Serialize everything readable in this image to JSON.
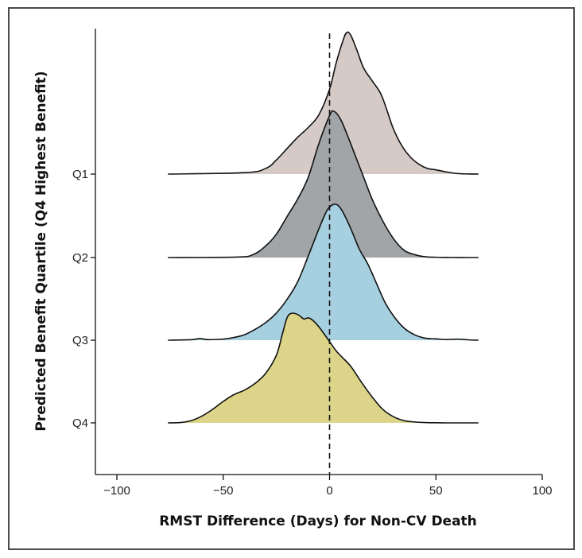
{
  "chart_data": {
    "type": "ridgeline",
    "xlabel": "RMST Difference (Days) for Non-CV Death",
    "ylabel": "Predicted Benefit Quartile (Q4 Highest Benefit)",
    "xlim": [
      -110,
      100
    ],
    "x_ticks": [
      -100,
      -50,
      0,
      50,
      100
    ],
    "x_tick_labels": [
      "−100",
      "−50",
      "0",
      "50",
      "100"
    ],
    "reference_line": {
      "x": 0,
      "style": "dashed"
    },
    "grid": false,
    "series": [
      {
        "name": "Q1",
        "color": "#d5cac6",
        "x": [
          -76,
          -40,
          -30,
          -25,
          -20,
          -15,
          -10,
          -5,
          0,
          3,
          6,
          8,
          10,
          13,
          16,
          20,
          24,
          27,
          30,
          34,
          38,
          42,
          46,
          50,
          55,
          60,
          65,
          70
        ],
        "density": [
          0,
          0.01,
          0.04,
          0.1,
          0.18,
          0.26,
          0.33,
          0.42,
          0.6,
          0.78,
          0.93,
          1.0,
          0.98,
          0.87,
          0.75,
          0.66,
          0.57,
          0.45,
          0.32,
          0.2,
          0.12,
          0.07,
          0.04,
          0.03,
          0.015,
          0.004,
          0.001,
          0
        ]
      },
      {
        "name": "Q2",
        "color": "#a1a5a8",
        "x": [
          -76,
          -44,
          -36,
          -30,
          -25,
          -20,
          -15,
          -10,
          -5,
          0,
          2,
          5,
          8,
          12,
          16,
          20,
          25,
          30,
          35,
          40,
          45,
          50,
          55,
          60,
          65,
          70
        ],
        "density": [
          0,
          0.003,
          0.02,
          0.08,
          0.16,
          0.28,
          0.4,
          0.55,
          0.78,
          0.97,
          1.0,
          0.95,
          0.85,
          0.7,
          0.55,
          0.4,
          0.25,
          0.13,
          0.05,
          0.02,
          0.005,
          0.002,
          0.001,
          0.0005,
          0,
          0
        ]
      },
      {
        "name": "Q3",
        "color": "#a6cfdf",
        "x": [
          -76,
          -65,
          -61,
          -57,
          -50,
          -45,
          -40,
          -35,
          -30,
          -25,
          -20,
          -15,
          -10,
          -5,
          -2,
          0,
          3,
          6,
          10,
          14,
          18,
          22,
          26,
          30,
          35,
          40,
          45,
          50,
          55,
          60,
          65,
          70
        ],
        "density": [
          0,
          0.004,
          0.012,
          0.004,
          0.008,
          0.02,
          0.04,
          0.08,
          0.13,
          0.2,
          0.3,
          0.43,
          0.62,
          0.82,
          0.93,
          0.98,
          1.0,
          0.95,
          0.82,
          0.67,
          0.56,
          0.42,
          0.28,
          0.18,
          0.09,
          0.04,
          0.015,
          0.01,
          0.005,
          0.008,
          0.003,
          0
        ]
      },
      {
        "name": "Q4",
        "color": "#dcd589",
        "x": [
          -76,
          -70,
          -65,
          -60,
          -55,
          -50,
          -45,
          -40,
          -35,
          -30,
          -25,
          -22,
          -20,
          -18,
          -15,
          -12,
          -10,
          -8,
          -5,
          0,
          3,
          6,
          10,
          15,
          20,
          25,
          30,
          35,
          40,
          45,
          50,
          55,
          60,
          65,
          70
        ],
        "density": [
          0,
          0.003,
          0.02,
          0.06,
          0.12,
          0.19,
          0.25,
          0.29,
          0.35,
          0.44,
          0.6,
          0.8,
          0.93,
          0.97,
          0.96,
          0.92,
          0.93,
          0.91,
          0.85,
          0.72,
          0.64,
          0.58,
          0.5,
          0.36,
          0.23,
          0.12,
          0.055,
          0.02,
          0.008,
          0.003,
          0.001,
          0,
          0,
          0,
          0
        ]
      }
    ]
  }
}
